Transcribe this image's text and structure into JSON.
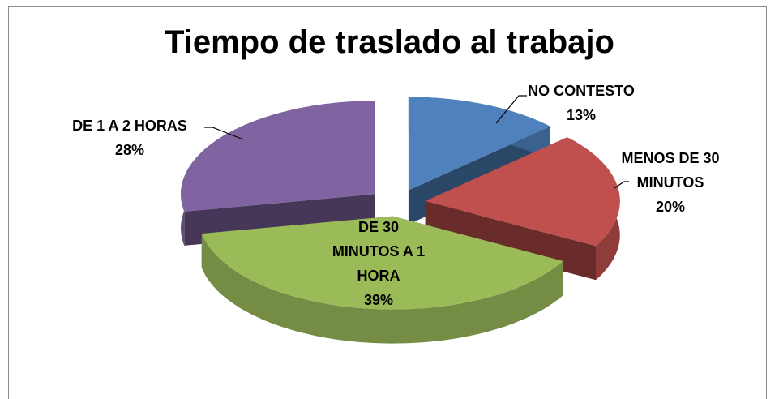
{
  "chart_data": {
    "type": "pie",
    "title": "Tiempo de traslado al trabajo",
    "categories": [
      "NO CONTESTO",
      "MENOS DE 30 MINUTOS",
      "DE 30 MINUTOS A 1 HORA",
      "DE 1 A 2 HORAS"
    ],
    "values": [
      13,
      20,
      39,
      28
    ],
    "value_labels": [
      "13%",
      "20%",
      "39%",
      "28%"
    ],
    "colors": [
      "#4f81bd",
      "#c0504d",
      "#9bbb59",
      "#8064a2"
    ]
  }
}
